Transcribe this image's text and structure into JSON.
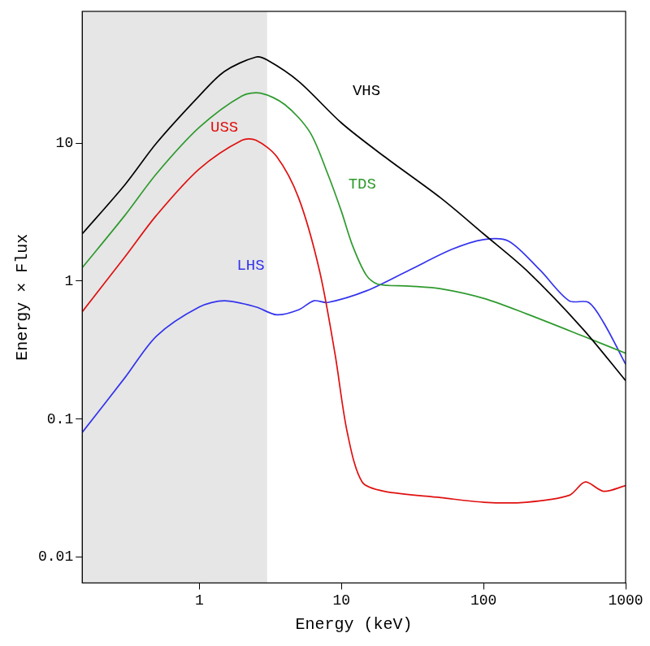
{
  "chart_data": {
    "type": "line",
    "x_label": "Energy (keV)",
    "y_label": "Energy × Flux",
    "log": true,
    "grid": false,
    "xlim": [
      0.15,
      1000
    ],
    "ylim": [
      0.0065,
      90
    ],
    "xticks": [
      1,
      10,
      100,
      1000
    ],
    "yticks": [
      0.01,
      0.1,
      1,
      10
    ],
    "shaded_region": {
      "x": [
        0.15,
        3
      ]
    },
    "series": [
      {
        "name": "VHS",
        "color": "#000000",
        "x": [
          0.15,
          0.3,
          0.5,
          1,
          1.5,
          2.5,
          3,
          5,
          10,
          20,
          50,
          100,
          200,
          500,
          1000
        ],
        "values": [
          2.2,
          5,
          10,
          22,
          33,
          42,
          40,
          28,
          14,
          8,
          4,
          2.2,
          1.2,
          0.45,
          0.19
        ],
        "label_position": [
          15,
          24
        ]
      },
      {
        "name": "TDS",
        "color": "#2e9a2e",
        "x": [
          0.15,
          0.3,
          0.5,
          1,
          2,
          2.7,
          4,
          6,
          8,
          10,
          12,
          15,
          18,
          30,
          50,
          100,
          200,
          500,
          1000
        ],
        "values": [
          1.25,
          3,
          6,
          13,
          22,
          23,
          19,
          12,
          6,
          3.2,
          1.8,
          1.1,
          0.95,
          0.92,
          0.88,
          0.75,
          0.58,
          0.4,
          0.3
        ],
        "label_position": [
          14,
          5
        ]
      },
      {
        "name": "USS",
        "color": "#e01010",
        "x": [
          0.15,
          0.3,
          0.5,
          1,
          2,
          2.5,
          3.5,
          5,
          7,
          9,
          11,
          14,
          20,
          50,
          100,
          200,
          400,
          520,
          700,
          1000
        ],
        "values": [
          0.6,
          1.5,
          3,
          6.5,
          10.5,
          10.5,
          8,
          4,
          1.2,
          0.3,
          0.08,
          0.035,
          0.03,
          0.027,
          0.025,
          0.025,
          0.028,
          0.035,
          0.03,
          0.033
        ],
        "label_position": [
          1.5,
          13
        ]
      },
      {
        "name": "LHS",
        "color": "#3333ee",
        "x": [
          0.15,
          0.3,
          0.5,
          1,
          1.5,
          2.5,
          3.5,
          5,
          6.4,
          8,
          15,
          30,
          60,
          100,
          150,
          250,
          400,
          550,
          700,
          1000
        ],
        "values": [
          0.08,
          0.2,
          0.4,
          0.65,
          0.72,
          0.65,
          0.57,
          0.62,
          0.72,
          0.7,
          0.85,
          1.2,
          1.7,
          2.0,
          1.95,
          1.2,
          0.72,
          0.7,
          0.5,
          0.25
        ],
        "label_position": [
          2.3,
          1.3
        ]
      }
    ]
  }
}
